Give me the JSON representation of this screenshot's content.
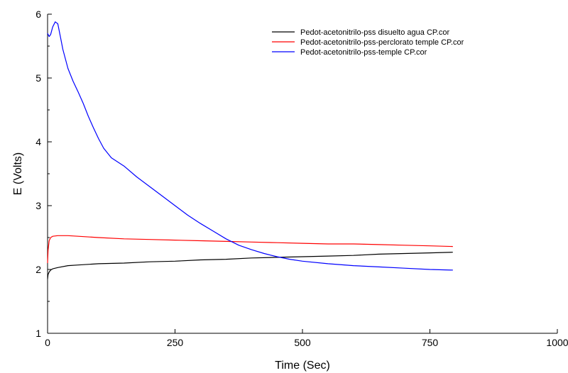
{
  "chart_data": {
    "type": "line",
    "title": "",
    "xlabel": "Time (Sec)",
    "ylabel": "E (Volts)",
    "xlim": [
      0,
      1000
    ],
    "ylim": [
      1,
      6
    ],
    "x_ticks": [
      0,
      250,
      500,
      750,
      1000
    ],
    "x_tick_labels": [
      "0",
      "250",
      "500",
      "750",
      "1000"
    ],
    "y_ticks": [
      1,
      2,
      3,
      4,
      5,
      6
    ],
    "y_tick_labels": [
      "1",
      "2",
      "3",
      "4",
      "5",
      "6"
    ],
    "grid": false,
    "legend_position": "top-right",
    "series": [
      {
        "name": "Pedot-acetonitrilo-pss disuelto agua  CP.cor",
        "color": "#000000",
        "x": [
          0,
          1,
          3,
          6,
          10,
          20,
          40,
          60,
          100,
          150,
          200,
          250,
          300,
          350,
          400,
          450,
          500,
          550,
          600,
          650,
          700,
          750,
          795
        ],
        "y": [
          1.85,
          1.92,
          1.96,
          1.99,
          2.01,
          2.03,
          2.06,
          2.07,
          2.09,
          2.1,
          2.12,
          2.13,
          2.15,
          2.16,
          2.18,
          2.19,
          2.2,
          2.21,
          2.22,
          2.24,
          2.25,
          2.26,
          2.27
        ]
      },
      {
        "name": "Pedot-acetonitrilo-pss-perclorato temple CP.cor",
        "color": "#ff0000",
        "x": [
          0,
          1,
          3,
          6,
          10,
          20,
          40,
          60,
          100,
          150,
          200,
          250,
          300,
          350,
          400,
          450,
          500,
          550,
          600,
          650,
          700,
          750,
          795
        ],
        "y": [
          2.1,
          2.3,
          2.45,
          2.5,
          2.52,
          2.53,
          2.53,
          2.52,
          2.5,
          2.48,
          2.47,
          2.46,
          2.45,
          2.44,
          2.43,
          2.42,
          2.41,
          2.4,
          2.4,
          2.39,
          2.38,
          2.37,
          2.36
        ]
      },
      {
        "name": "Pedot-acetonitrilo-pss-temple CP.cor",
        "color": "#0000ff",
        "x": [
          0,
          3,
          6,
          10,
          15,
          20,
          25,
          30,
          40,
          50,
          60,
          70,
          80,
          90,
          100,
          110,
          125,
          150,
          175,
          200,
          225,
          250,
          275,
          300,
          325,
          350,
          375,
          400,
          425,
          450,
          475,
          500,
          550,
          600,
          650,
          700,
          750,
          795
        ],
        "y": [
          5.7,
          5.65,
          5.68,
          5.8,
          5.88,
          5.85,
          5.65,
          5.45,
          5.15,
          4.95,
          4.78,
          4.6,
          4.4,
          4.22,
          4.05,
          3.9,
          3.75,
          3.62,
          3.45,
          3.3,
          3.15,
          3.0,
          2.85,
          2.72,
          2.6,
          2.48,
          2.38,
          2.31,
          2.25,
          2.2,
          2.16,
          2.13,
          2.09,
          2.06,
          2.04,
          2.02,
          2.0,
          1.99
        ]
      }
    ]
  }
}
